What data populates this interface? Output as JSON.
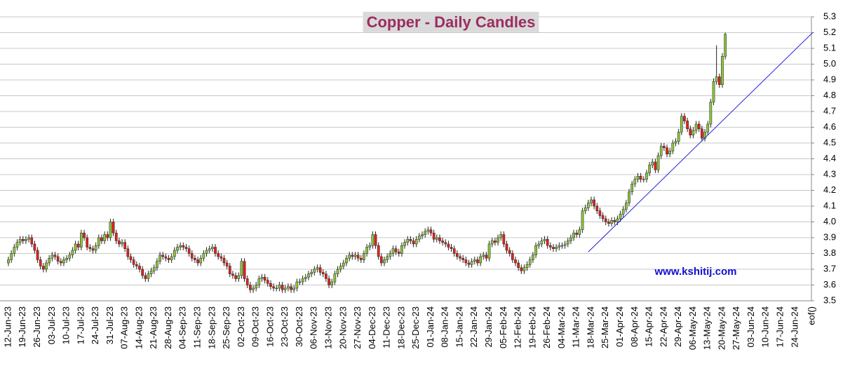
{
  "chart_data": {
    "type": "candlestick",
    "title": "Copper - Daily Candles",
    "watermark": "www.kshitij.com",
    "categories": [
      "12-Jun-23",
      "19-Jun-23",
      "26-Jun-23",
      "03-Jul-23",
      "10-Jul-23",
      "17-Jul-23",
      "24-Jul-23",
      "31-Jul-23",
      "07-Aug-23",
      "14-Aug-23",
      "21-Aug-23",
      "28-Aug-23",
      "04-Sep-23",
      "11-Sep-23",
      "18-Sep-23",
      "25-Sep-23",
      "02-Oct-23",
      "09-Oct-23",
      "16-Oct-23",
      "23-Oct-23",
      "30-Oct-23",
      "06-Nov-23",
      "13-Nov-23",
      "20-Nov-23",
      "27-Nov-23",
      "04-Dec-23",
      "11-Dec-23",
      "18-Dec-23",
      "25-Dec-23",
      "01-Jan-24",
      "08-Jan-24",
      "15-Jan-24",
      "22-Jan-24",
      "29-Jan-24",
      "05-Feb-24",
      "12-Feb-24",
      "19-Feb-24",
      "26-Feb-24",
      "04-Mar-24",
      "11-Mar-24",
      "18-Mar-24",
      "25-Mar-24",
      "01-Apr-24",
      "08-Apr-24",
      "15-Apr-24",
      "22-Apr-24",
      "29-Apr-24",
      "06-May-24",
      "13-May-24",
      "20-May-24",
      "27-May-24",
      "03-Jun-24",
      "10-Jun-24",
      "17-Jun-24",
      "24-Jun-24"
    ],
    "end_label": "eof()",
    "open": [
      3.74,
      3.76,
      3.8,
      3.84,
      3.87,
      3.89,
      3.88,
      3.89,
      3.9,
      3.86,
      3.82,
      3.76,
      3.72,
      3.7,
      3.74,
      3.77,
      3.79,
      3.78,
      3.75,
      3.74,
      3.76,
      3.77,
      3.79,
      3.82,
      3.86,
      3.84,
      3.93,
      3.9,
      3.84,
      3.83,
      3.82,
      3.85,
      3.9,
      3.88,
      3.92,
      3.9,
      4.0,
      3.93,
      3.88,
      3.86,
      3.87,
      3.83,
      3.78,
      3.76,
      3.73,
      3.72,
      3.7,
      3.66,
      3.64,
      3.67,
      3.69,
      3.71,
      3.75,
      3.79,
      3.78,
      3.77,
      3.76,
      3.78,
      3.82,
      3.84,
      3.85,
      3.84,
      3.83,
      3.8,
      3.77,
      3.76,
      3.74,
      3.77,
      3.8,
      3.82,
      3.83,
      3.84,
      3.8,
      3.78,
      3.77,
      3.74,
      3.72,
      3.67,
      3.66,
      3.64,
      3.66,
      3.75,
      3.64,
      3.6,
      3.57,
      3.58,
      3.6,
      3.64,
      3.65,
      3.63,
      3.61,
      3.59,
      3.58,
      3.58,
      3.6,
      3.57,
      3.58,
      3.59,
      3.57,
      3.58,
      3.62,
      3.62,
      3.64,
      3.65,
      3.67,
      3.68,
      3.7,
      3.71,
      3.68,
      3.67,
      3.64,
      3.6,
      3.62,
      3.67,
      3.7,
      3.72,
      3.74,
      3.77,
      3.79,
      3.78,
      3.79,
      3.77,
      3.76,
      3.8,
      3.84,
      3.85,
      3.92,
      3.85,
      3.78,
      3.74,
      3.76,
      3.78,
      3.8,
      3.83,
      3.81,
      3.8,
      3.85,
      3.87,
      3.89,
      3.88,
      3.86,
      3.89,
      3.91,
      3.92,
      3.94,
      3.95,
      3.93,
      3.89,
      3.9,
      3.88,
      3.87,
      3.86,
      3.84,
      3.83,
      3.8,
      3.78,
      3.77,
      3.76,
      3.74,
      3.73,
      3.75,
      3.76,
      3.74,
      3.78,
      3.79,
      3.77,
      3.86,
      3.88,
      3.87,
      3.9,
      3.92,
      3.86,
      3.82,
      3.8,
      3.76,
      3.74,
      3.71,
      3.69,
      3.71,
      3.73,
      3.76,
      3.79,
      3.85,
      3.86,
      3.88,
      3.89,
      3.85,
      3.84,
      3.83,
      3.84,
      3.85,
      3.85,
      3.86,
      3.88,
      3.9,
      3.93,
      3.92,
      3.95,
      4.07,
      4.09,
      4.12,
      4.14,
      4.1,
      4.07,
      4.04,
      4.02,
      4.0,
      3.99,
      4.01,
      4.0,
      4.02,
      4.05,
      4.08,
      4.12,
      4.19,
      4.24,
      4.27,
      4.29,
      4.27,
      4.27,
      4.31,
      4.36,
      4.38,
      4.33,
      4.42,
      4.48,
      4.47,
      4.43,
      4.45,
      4.5,
      4.51,
      4.57,
      4.67,
      4.64,
      4.59,
      4.55,
      4.58,
      4.62,
      4.59,
      4.53,
      4.57,
      4.62,
      4.76,
      4.89,
      4.92,
      4.87,
      5.05
    ],
    "high": [
      3.78,
      3.82,
      3.86,
      3.89,
      3.91,
      3.91,
      3.91,
      3.92,
      3.92,
      3.88,
      3.84,
      3.78,
      3.74,
      3.76,
      3.79,
      3.81,
      3.81,
      3.8,
      3.77,
      3.78,
      3.79,
      3.81,
      3.84,
      3.88,
      3.88,
      3.95,
      3.95,
      3.92,
      3.86,
      3.85,
      3.87,
      3.92,
      3.92,
      3.94,
      3.94,
      4.02,
      4.02,
      3.95,
      3.9,
      3.89,
      3.89,
      3.85,
      3.8,
      3.78,
      3.75,
      3.74,
      3.72,
      3.68,
      3.69,
      3.71,
      3.73,
      3.77,
      3.81,
      3.81,
      3.8,
      3.79,
      3.8,
      3.84,
      3.86,
      3.87,
      3.87,
      3.86,
      3.85,
      3.82,
      3.79,
      3.78,
      3.79,
      3.82,
      3.84,
      3.85,
      3.86,
      3.86,
      3.82,
      3.8,
      3.79,
      3.76,
      3.74,
      3.69,
      3.68,
      3.68,
      3.77,
      3.77,
      3.66,
      3.62,
      3.6,
      3.62,
      3.66,
      3.67,
      3.67,
      3.65,
      3.63,
      3.61,
      3.6,
      3.62,
      3.62,
      3.6,
      3.61,
      3.61,
      3.6,
      3.64,
      3.64,
      3.66,
      3.67,
      3.69,
      3.7,
      3.72,
      3.73,
      3.73,
      3.7,
      3.69,
      3.66,
      3.64,
      3.69,
      3.72,
      3.74,
      3.76,
      3.79,
      3.81,
      3.81,
      3.81,
      3.81,
      3.79,
      3.82,
      3.86,
      3.87,
      3.94,
      3.94,
      3.87,
      3.8,
      3.78,
      3.8,
      3.82,
      3.85,
      3.85,
      3.83,
      3.87,
      3.89,
      3.91,
      3.91,
      3.9,
      3.91,
      3.93,
      3.94,
      3.96,
      3.97,
      3.97,
      3.95,
      3.92,
      3.92,
      3.9,
      3.89,
      3.88,
      3.86,
      3.85,
      3.82,
      3.8,
      3.79,
      3.78,
      3.76,
      3.77,
      3.78,
      3.78,
      3.8,
      3.81,
      3.81,
      3.88,
      3.9,
      3.9,
      3.92,
      3.94,
      3.94,
      3.88,
      3.84,
      3.82,
      3.78,
      3.76,
      3.73,
      3.73,
      3.75,
      3.78,
      3.81,
      3.87,
      3.88,
      3.9,
      3.91,
      3.91,
      3.87,
      3.86,
      3.86,
      3.87,
      3.87,
      3.88,
      3.9,
      3.92,
      3.95,
      3.95,
      3.97,
      4.09,
      4.11,
      4.14,
      4.16,
      4.16,
      4.12,
      4.09,
      4.06,
      4.04,
      4.02,
      4.03,
      4.03,
      4.04,
      4.07,
      4.1,
      4.14,
      4.21,
      4.26,
      4.29,
      4.31,
      4.31,
      4.29,
      4.33,
      4.38,
      4.4,
      4.4,
      4.44,
      4.5,
      4.5,
      4.49,
      4.47,
      4.52,
      4.53,
      4.59,
      4.69,
      4.69,
      4.66,
      4.61,
      4.6,
      4.64,
      4.64,
      4.61,
      4.59,
      4.64,
      4.78,
      4.91,
      5.12,
      4.94,
      5.07,
      5.2
    ],
    "low": [
      3.72,
      3.74,
      3.78,
      3.82,
      3.85,
      3.86,
      3.86,
      3.87,
      3.84,
      3.8,
      3.74,
      3.7,
      3.68,
      3.68,
      3.72,
      3.75,
      3.76,
      3.73,
      3.72,
      3.72,
      3.74,
      3.75,
      3.77,
      3.8,
      3.82,
      3.82,
      3.88,
      3.82,
      3.81,
      3.8,
      3.8,
      3.83,
      3.86,
      3.86,
      3.88,
      3.88,
      3.91,
      3.86,
      3.84,
      3.84,
      3.81,
      3.76,
      3.74,
      3.71,
      3.7,
      3.68,
      3.64,
      3.62,
      3.62,
      3.65,
      3.67,
      3.69,
      3.73,
      3.76,
      3.75,
      3.74,
      3.74,
      3.76,
      3.8,
      3.82,
      3.82,
      3.81,
      3.78,
      3.75,
      3.74,
      3.72,
      3.72,
      3.75,
      3.78,
      3.8,
      3.81,
      3.78,
      3.76,
      3.75,
      3.72,
      3.7,
      3.65,
      3.64,
      3.62,
      3.62,
      3.64,
      3.62,
      3.58,
      3.55,
      3.55,
      3.56,
      3.58,
      3.62,
      3.61,
      3.59,
      3.57,
      3.56,
      3.56,
      3.56,
      3.55,
      3.55,
      3.56,
      3.55,
      3.55,
      3.56,
      3.6,
      3.6,
      3.62,
      3.63,
      3.65,
      3.66,
      3.68,
      3.66,
      3.65,
      3.62,
      3.58,
      3.58,
      3.6,
      3.65,
      3.68,
      3.7,
      3.72,
      3.75,
      3.76,
      3.76,
      3.75,
      3.74,
      3.74,
      3.78,
      3.82,
      3.83,
      3.83,
      3.76,
      3.72,
      3.72,
      3.74,
      3.76,
      3.78,
      3.79,
      3.78,
      3.78,
      3.83,
      3.85,
      3.86,
      3.84,
      3.84,
      3.87,
      3.89,
      3.9,
      3.92,
      3.91,
      3.87,
      3.87,
      3.86,
      3.85,
      3.84,
      3.82,
      3.81,
      3.78,
      3.76,
      3.75,
      3.74,
      3.72,
      3.71,
      3.71,
      3.73,
      3.72,
      3.72,
      3.76,
      3.75,
      3.75,
      3.84,
      3.85,
      3.85,
      3.88,
      3.84,
      3.8,
      3.78,
      3.74,
      3.72,
      3.69,
      3.67,
      3.67,
      3.69,
      3.71,
      3.74,
      3.77,
      3.83,
      3.84,
      3.86,
      3.83,
      3.82,
      3.81,
      3.81,
      3.82,
      3.83,
      3.83,
      3.84,
      3.86,
      3.88,
      3.9,
      3.9,
      3.93,
      4.05,
      4.07,
      4.1,
      4.08,
      4.05,
      4.02,
      4.0,
      3.98,
      3.97,
      3.97,
      3.98,
      3.98,
      4.0,
      4.03,
      4.06,
      4.1,
      4.17,
      4.22,
      4.25,
      4.25,
      4.25,
      4.25,
      4.29,
      4.34,
      4.31,
      4.31,
      4.4,
      4.45,
      4.41,
      4.41,
      4.43,
      4.48,
      4.49,
      4.55,
      4.62,
      4.57,
      4.53,
      4.53,
      4.56,
      4.57,
      4.51,
      4.51,
      4.55,
      4.6,
      4.74,
      4.87,
      4.85,
      4.85,
      5.03
    ],
    "close": [
      3.76,
      3.8,
      3.84,
      3.87,
      3.89,
      3.88,
      3.89,
      3.9,
      3.86,
      3.82,
      3.76,
      3.72,
      3.7,
      3.74,
      3.77,
      3.79,
      3.78,
      3.75,
      3.74,
      3.76,
      3.77,
      3.79,
      3.82,
      3.86,
      3.84,
      3.93,
      3.9,
      3.84,
      3.83,
      3.82,
      3.85,
      3.9,
      3.88,
      3.92,
      3.9,
      4.0,
      3.93,
      3.88,
      3.86,
      3.87,
      3.83,
      3.78,
      3.76,
      3.73,
      3.72,
      3.7,
      3.66,
      3.64,
      3.67,
      3.69,
      3.71,
      3.75,
      3.79,
      3.78,
      3.77,
      3.76,
      3.78,
      3.82,
      3.84,
      3.85,
      3.84,
      3.83,
      3.8,
      3.77,
      3.76,
      3.74,
      3.77,
      3.8,
      3.82,
      3.83,
      3.84,
      3.8,
      3.78,
      3.77,
      3.74,
      3.72,
      3.67,
      3.66,
      3.64,
      3.66,
      3.75,
      3.64,
      3.6,
      3.57,
      3.58,
      3.6,
      3.64,
      3.65,
      3.63,
      3.61,
      3.59,
      3.58,
      3.58,
      3.6,
      3.57,
      3.58,
      3.59,
      3.57,
      3.58,
      3.62,
      3.62,
      3.64,
      3.65,
      3.67,
      3.68,
      3.7,
      3.71,
      3.68,
      3.67,
      3.64,
      3.6,
      3.62,
      3.67,
      3.7,
      3.72,
      3.74,
      3.77,
      3.79,
      3.78,
      3.79,
      3.77,
      3.76,
      3.8,
      3.84,
      3.85,
      3.92,
      3.85,
      3.78,
      3.74,
      3.76,
      3.78,
      3.8,
      3.83,
      3.81,
      3.8,
      3.85,
      3.87,
      3.89,
      3.88,
      3.86,
      3.89,
      3.91,
      3.92,
      3.94,
      3.95,
      3.93,
      3.89,
      3.9,
      3.88,
      3.87,
      3.86,
      3.84,
      3.83,
      3.8,
      3.78,
      3.77,
      3.76,
      3.74,
      3.73,
      3.75,
      3.76,
      3.74,
      3.78,
      3.79,
      3.77,
      3.86,
      3.88,
      3.87,
      3.9,
      3.92,
      3.86,
      3.82,
      3.8,
      3.76,
      3.74,
      3.71,
      3.69,
      3.71,
      3.73,
      3.76,
      3.79,
      3.85,
      3.86,
      3.88,
      3.89,
      3.85,
      3.84,
      3.83,
      3.84,
      3.85,
      3.85,
      3.86,
      3.88,
      3.9,
      3.93,
      3.92,
      3.95,
      4.07,
      4.09,
      4.12,
      4.14,
      4.1,
      4.07,
      4.04,
      4.02,
      4.0,
      3.99,
      4.01,
      4.0,
      4.02,
      4.05,
      4.08,
      4.12,
      4.19,
      4.24,
      4.27,
      4.29,
      4.27,
      4.27,
      4.31,
      4.36,
      4.38,
      4.33,
      4.42,
      4.48,
      4.47,
      4.43,
      4.45,
      4.5,
      4.51,
      4.57,
      4.67,
      4.64,
      4.59,
      4.55,
      4.58,
      4.62,
      4.59,
      4.53,
      4.57,
      4.62,
      4.76,
      4.89,
      4.92,
      4.87,
      5.05,
      5.19
    ],
    "up_color": "#8cc43c",
    "down_color": "#e3211c",
    "trendline": {
      "from": [
        199,
        3.81
      ],
      "to": [
        276,
        5.2
      ],
      "color": "#2222dd"
    },
    "ylim": [
      3.5,
      5.3
    ],
    "yticks": [
      3.5,
      3.6,
      3.7,
      3.8,
      3.9,
      {
        "value": 4,
        "label": "4.0"
      },
      4.1,
      4.2,
      4.3,
      4.4,
      4.5,
      4.6,
      4.7,
      4.8,
      4.9,
      {
        "value": 5,
        "label": "5.0"
      },
      5.1,
      5.2,
      5.3
    ],
    "grid": true
  }
}
